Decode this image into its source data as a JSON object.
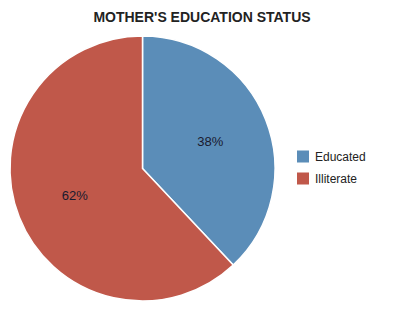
{
  "chart_data": {
    "type": "pie",
    "title": "MOTHER'S EDUCATION STATUS",
    "categories": [
      "Educated",
      "Illiterate"
    ],
    "values": [
      38,
      62
    ],
    "value_labels": [
      "38%",
      "62%"
    ],
    "data_labels": true,
    "colors": [
      "#5b8db8",
      "#c0584a"
    ],
    "legend": "right"
  }
}
